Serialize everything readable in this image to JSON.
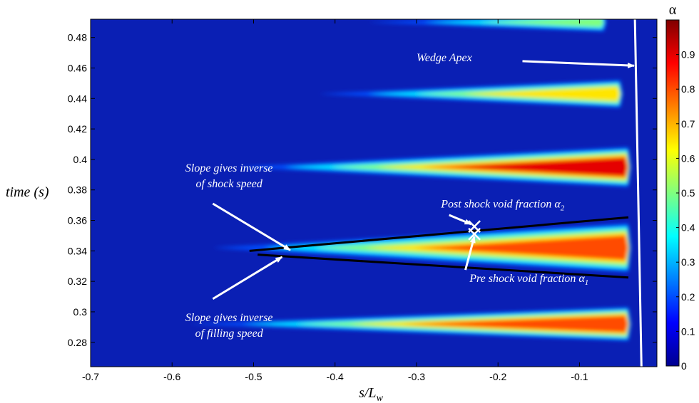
{
  "chart_data": {
    "type": "heatmap",
    "xlabel": "s/L",
    "xlabel_sub": "w",
    "ylabel": "time (s)",
    "xlim": [
      -0.7,
      -0.005
    ],
    "ylim": [
      0.264,
      0.492
    ],
    "x_ticks": [
      -0.7,
      -0.6,
      -0.5,
      -0.4,
      -0.3,
      -0.2,
      -0.1
    ],
    "x_tick_labels": [
      "-0.7",
      "-0.6",
      "-0.5",
      "-0.4",
      "-0.3",
      "-0.2",
      "-0.1"
    ],
    "y_ticks": [
      0.28,
      0.3,
      0.32,
      0.34,
      0.36,
      0.38,
      0.4,
      0.42,
      0.44,
      0.46,
      0.48
    ],
    "y_tick_labels": [
      "0.28",
      "0.3",
      "0.32",
      "0.34",
      "0.36",
      "0.38",
      "0.4",
      "0.42",
      "0.44",
      "0.46",
      "0.48"
    ],
    "colorbar": {
      "title": "α",
      "range": [
        0,
        1
      ],
      "ticks": [
        0,
        0.1,
        0.2,
        0.3,
        0.4,
        0.5,
        0.6,
        0.7,
        0.8,
        0.9
      ],
      "tick_labels": [
        "0",
        "0.1",
        "0.2",
        "0.3",
        "0.4",
        "0.5",
        "0.6",
        "0.7",
        "0.8",
        "0.9"
      ],
      "colormap": "jet"
    },
    "cavities": [
      {
        "t_center": 0.292,
        "x_start": -0.58,
        "x_end": -0.04,
        "half_width_end": 0.011,
        "peak": 0.88
      },
      {
        "t_center": 0.342,
        "x_start": -0.55,
        "x_end": -0.04,
        "half_width_end": 0.016,
        "peak": 0.88
      },
      {
        "t_center": 0.395,
        "x_start": -0.52,
        "x_end": -0.04,
        "half_width_end": 0.013,
        "peak": 0.9
      },
      {
        "t_center": 0.443,
        "x_start": -0.42,
        "x_end": -0.05,
        "half_width_end": 0.009,
        "peak": 0.72
      },
      {
        "t_center": 0.49,
        "x_start": -0.36,
        "x_end": -0.07,
        "half_width_end": 0.006,
        "peak": 0.55
      }
    ],
    "lines": [
      {
        "name": "shock-line",
        "x": [
          -0.505,
          -0.04
        ],
        "y": [
          0.34,
          0.362
        ],
        "color": "#000000"
      },
      {
        "name": "filling-line",
        "x": [
          -0.495,
          -0.04
        ],
        "y": [
          0.3375,
          0.3225
        ],
        "color": "#000000"
      },
      {
        "name": "wedge-apex-line",
        "x": [
          -0.032,
          -0.024
        ],
        "y": [
          0.492,
          0.264
        ],
        "color": "#ffffff"
      }
    ],
    "markers": [
      {
        "name": "post-shock-marker",
        "x": -0.229,
        "y": 0.356,
        "symbol": "x",
        "color": "#ffffff"
      },
      {
        "name": "pre-shock-marker",
        "x": -0.229,
        "y": 0.351,
        "symbol": "x",
        "color": "#ffffff"
      }
    ],
    "annotations": [
      {
        "name": "wedge-apex-label",
        "text": "Wedge Apex",
        "x": -0.3,
        "y": 0.4645,
        "arrow_from": [
          -0.17,
          0.4645
        ],
        "arrow_to": [
          -0.033,
          0.4615
        ]
      },
      {
        "name": "slope-shock-label",
        "lines": [
          "Slope gives inverse",
          "of shock speed"
        ],
        "x": -0.53,
        "y": 0.392,
        "arrow_from": [
          -0.55,
          0.371
        ],
        "arrow_to": [
          -0.455,
          0.3405
        ]
      },
      {
        "name": "slope-filling-label",
        "lines": [
          "Slope gives inverse",
          "of filling speed"
        ],
        "x": -0.53,
        "y": 0.294,
        "arrow_from": [
          -0.55,
          0.3085
        ],
        "arrow_to": [
          -0.465,
          0.336
        ]
      },
      {
        "name": "post-shock-label",
        "text": "Post shock void fraction α",
        "sub": "2",
        "x": -0.27,
        "y": 0.3685,
        "arrow_from": [
          -0.26,
          0.3635
        ],
        "arrow_to": [
          -0.233,
          0.3575
        ]
      },
      {
        "name": "pre-shock-label",
        "text": "Pre shock void fraction α",
        "sub": "1",
        "x": -0.235,
        "y": 0.3195,
        "arrow_from": [
          -0.24,
          0.3275
        ],
        "arrow_to": [
          -0.229,
          0.3495
        ]
      }
    ]
  }
}
